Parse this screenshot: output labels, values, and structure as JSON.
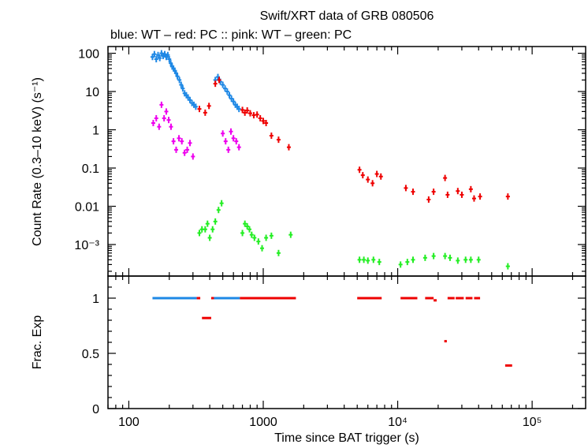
{
  "title": "Swift/XRT data of GRB 080506",
  "subtitle": "blue: WT  – red: PC  :: pink: WT  – green: PC",
  "colors": {
    "wt_blue": "#1e88e5",
    "pc_red": "#ee0000",
    "wt_pink": "#ee00ee",
    "pc_green": "#22ee22",
    "frame": "#000000"
  },
  "chart_data": [
    {
      "type": "scatter",
      "panel": "top",
      "xlabel": "",
      "ylabel": "Count Rate (0.3–10 keV) (s⁻¹)",
      "xscale": "log",
      "yscale": "log",
      "xlim": [
        70,
        250000
      ],
      "ylim": [
        0.00015,
        150
      ],
      "y_tick_labels": [
        "100",
        "10",
        "1",
        "0.1",
        "0.01",
        "10⁻³"
      ],
      "y_tick_values": [
        100,
        10,
        1,
        0.1,
        0.01,
        0.001
      ],
      "series": [
        {
          "color_key": "wt_blue",
          "points": [
            [
              150,
              80
            ],
            [
              155,
              95
            ],
            [
              160,
              70
            ],
            [
              165,
              90
            ],
            [
              170,
              75
            ],
            [
              175,
              100
            ],
            [
              180,
              85
            ],
            [
              185,
              95
            ],
            [
              190,
              80
            ],
            [
              195,
              90
            ],
            [
              200,
              70
            ],
            [
              205,
              55
            ],
            [
              210,
              45
            ],
            [
              215,
              40
            ],
            [
              220,
              35
            ],
            [
              225,
              30
            ],
            [
              230,
              25
            ],
            [
              238,
              20
            ],
            [
              245,
              15
            ],
            [
              252,
              12
            ],
            [
              260,
              9
            ],
            [
              268,
              8
            ],
            [
              276,
              7
            ],
            [
              285,
              6
            ],
            [
              295,
              5
            ],
            [
              305,
              4.5
            ],
            [
              315,
              4
            ],
            [
              440,
              20
            ],
            [
              460,
              24
            ],
            [
              480,
              18
            ],
            [
              500,
              15
            ],
            [
              520,
              12
            ],
            [
              540,
              10
            ],
            [
              560,
              8
            ],
            [
              580,
              6.5
            ],
            [
              600,
              5.5
            ],
            [
              620,
              4.5
            ],
            [
              640,
              4
            ],
            [
              660,
              3.5
            ]
          ]
        },
        {
          "color_key": "pc_red",
          "points": [
            [
              335,
              3.5
            ],
            [
              370,
              2.8
            ],
            [
              395,
              4.2
            ],
            [
              440,
              16
            ],
            [
              470,
              20
            ],
            [
              700,
              3.3
            ],
            [
              730,
              2.8
            ],
            [
              760,
              3.2
            ],
            [
              800,
              2.7
            ],
            [
              850,
              2.4
            ],
            [
              900,
              2.5
            ],
            [
              950,
              2.0
            ],
            [
              1000,
              1.7
            ],
            [
              1050,
              1.5
            ],
            [
              1150,
              0.7
            ],
            [
              1300,
              0.55
            ],
            [
              1550,
              0.35
            ],
            [
              5200,
              0.09
            ],
            [
              5500,
              0.065
            ],
            [
              6000,
              0.05
            ],
            [
              6500,
              0.04
            ],
            [
              7000,
              0.07
            ],
            [
              7500,
              0.06
            ],
            [
              11500,
              0.03
            ],
            [
              13000,
              0.024
            ],
            [
              17000,
              0.015
            ],
            [
              18500,
              0.024
            ],
            [
              22500,
              0.055
            ],
            [
              23500,
              0.02
            ],
            [
              28000,
              0.025
            ],
            [
              30000,
              0.02
            ],
            [
              35000,
              0.028
            ],
            [
              37000,
              0.016
            ],
            [
              41000,
              0.018
            ],
            [
              66000,
              0.018
            ]
          ]
        },
        {
          "color_key": "wt_pink",
          "points": [
            [
              152,
              1.5
            ],
            [
              160,
              2.0
            ],
            [
              168,
              1.2
            ],
            [
              175,
              4.5
            ],
            [
              183,
              2.0
            ],
            [
              190,
              3.0
            ],
            [
              198,
              1.8
            ],
            [
              206,
              1.2
            ],
            [
              215,
              0.5
            ],
            [
              225,
              0.3
            ],
            [
              236,
              0.6
            ],
            [
              248,
              0.5
            ],
            [
              260,
              0.25
            ],
            [
              272,
              0.3
            ],
            [
              285,
              0.45
            ],
            [
              300,
              0.2
            ],
            [
              500,
              0.8
            ],
            [
              525,
              0.5
            ],
            [
              550,
              0.3
            ],
            [
              575,
              0.9
            ],
            [
              600,
              0.6
            ],
            [
              630,
              0.5
            ],
            [
              660,
              0.35
            ]
          ]
        },
        {
          "color_key": "pc_green",
          "points": [
            [
              335,
              0.002
            ],
            [
              350,
              0.0025
            ],
            [
              370,
              0.0025
            ],
            [
              385,
              0.0035
            ],
            [
              400,
              0.0015
            ],
            [
              420,
              0.0025
            ],
            [
              440,
              0.004
            ],
            [
              465,
              0.008
            ],
            [
              490,
              0.012
            ],
            [
              700,
              0.002
            ],
            [
              730,
              0.0035
            ],
            [
              760,
              0.003
            ],
            [
              790,
              0.0025
            ],
            [
              820,
              0.0018
            ],
            [
              860,
              0.0015
            ],
            [
              920,
              0.0012
            ],
            [
              980,
              0.0008
            ],
            [
              1050,
              0.0015
            ],
            [
              1150,
              0.0017
            ],
            [
              1300,
              0.0006
            ],
            [
              1600,
              0.0018
            ],
            [
              5200,
              0.0004
            ],
            [
              5600,
              0.0004
            ],
            [
              6000,
              0.00038
            ],
            [
              6600,
              0.0004
            ],
            [
              7300,
              0.00035
            ],
            [
              10500,
              0.0003
            ],
            [
              11800,
              0.00035
            ],
            [
              13000,
              0.0004
            ],
            [
              16000,
              0.00045
            ],
            [
              18500,
              0.0005
            ],
            [
              22500,
              0.0005
            ],
            [
              24500,
              0.00045
            ],
            [
              28000,
              0.00038
            ],
            [
              32000,
              0.0004
            ],
            [
              35000,
              0.0004
            ],
            [
              40000,
              0.0004
            ],
            [
              66000,
              0.00027
            ]
          ]
        }
      ]
    },
    {
      "type": "scatter",
      "panel": "bottom",
      "xlabel": "Time since BAT trigger (s)",
      "ylabel": "Frac. Exp",
      "xscale": "log",
      "yscale": "linear",
      "xlim": [
        70,
        250000
      ],
      "ylim": [
        0,
        1.2
      ],
      "x_tick_labels": [
        "100",
        "1000",
        "10⁴",
        "10⁵"
      ],
      "x_tick_values": [
        100,
        1000,
        10000,
        100000
      ],
      "y_tick_labels": [
        "1",
        "0.5",
        "0"
      ],
      "y_tick_values": [
        1,
        0.5,
        0
      ],
      "series": [
        {
          "color_key": "wt_blue",
          "segments": [
            [
              150,
              320,
              1.0
            ],
            [
              430,
              670,
              1.0
            ]
          ]
        },
        {
          "color_key": "pc_red",
          "segments": [
            [
              320,
              340,
              1.0
            ],
            [
              350,
              410,
              0.82
            ],
            [
              410,
              430,
              1.0
            ],
            [
              670,
              1750,
              1.0
            ],
            [
              5000,
              7600,
              1.0
            ],
            [
              10500,
              14000,
              1.0
            ],
            [
              16000,
              18500,
              1.0
            ],
            [
              18500,
              19500,
              0.98
            ],
            [
              22200,
              23200,
              0.61
            ],
            [
              23500,
              26500,
              1.0
            ],
            [
              27000,
              31000,
              1.0
            ],
            [
              32000,
              36000,
              1.0
            ],
            [
              37000,
              41000,
              1.0
            ],
            [
              63000,
              71000,
              0.39
            ]
          ]
        }
      ]
    }
  ]
}
